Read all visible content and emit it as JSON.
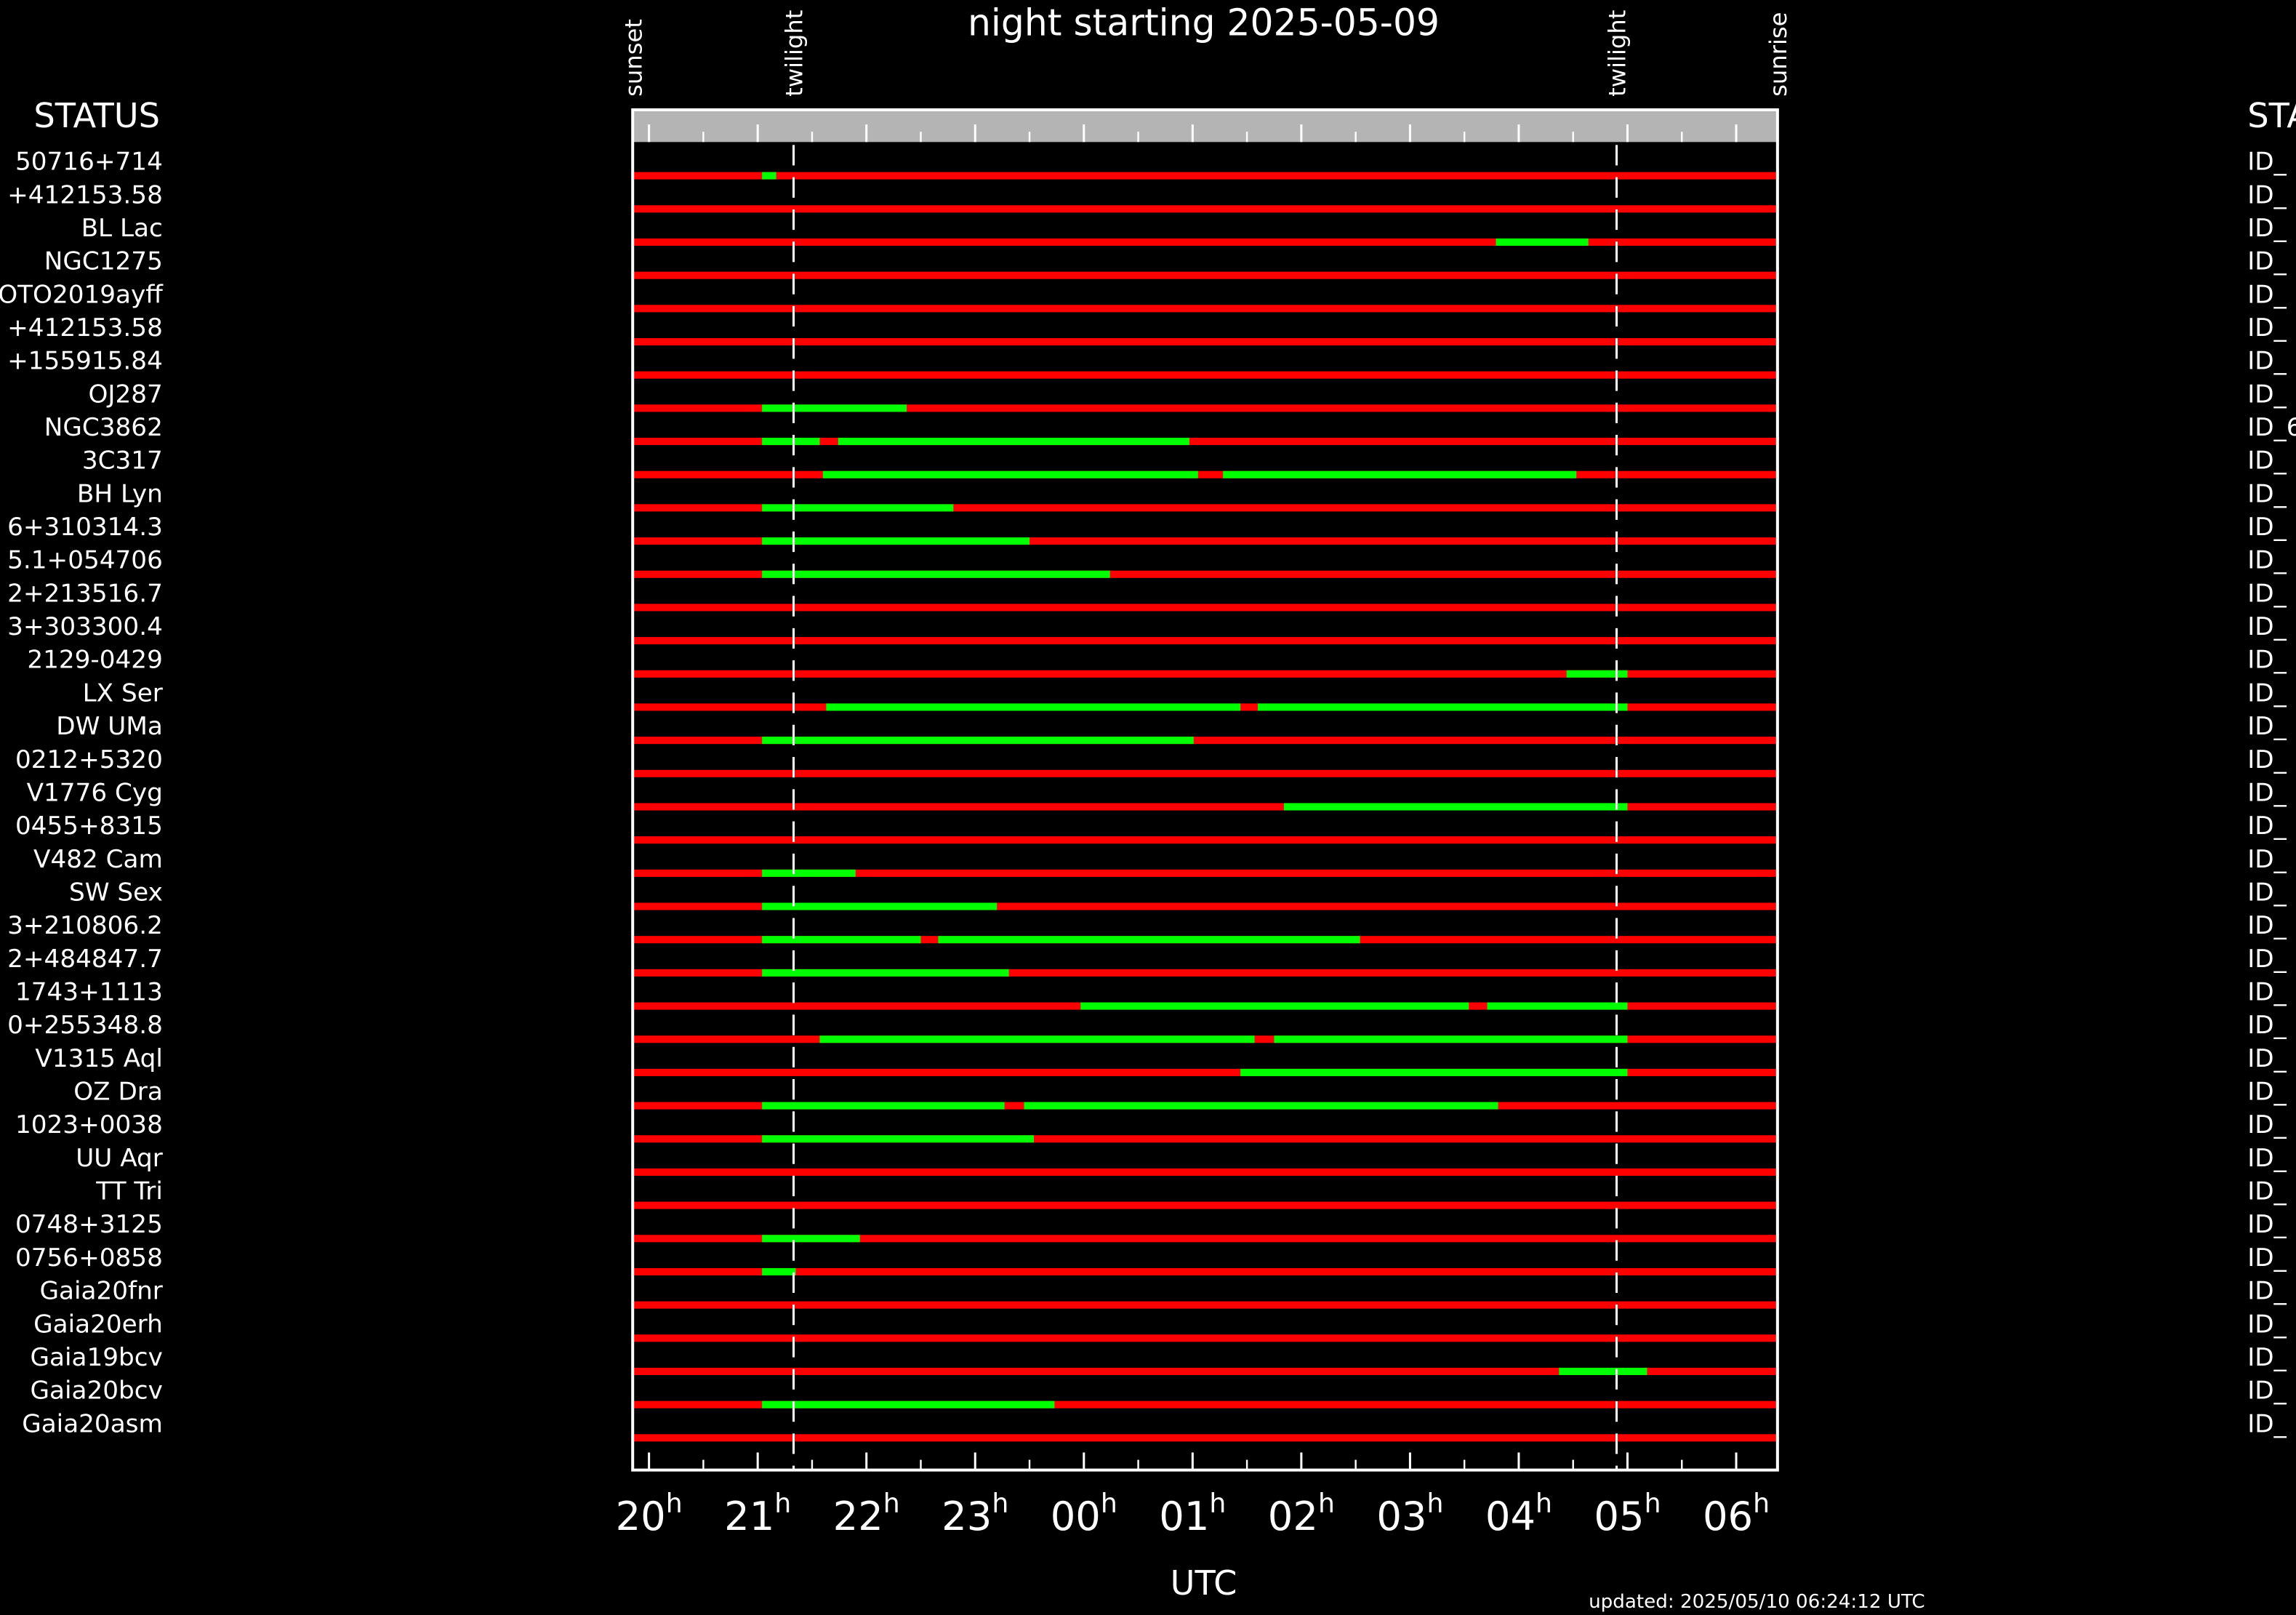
{
  "chart_data": {
    "type": "visibility",
    "title": "night starting 2025-05-09",
    "ylabel": "STATUS",
    "right_header": "STA",
    "xlabel": "UTC",
    "updated": "updated: 2025/05/10 06:24:12 UTC",
    "tick_suffix": "h",
    "xlim": [
      19.85,
      30.38
    ],
    "xticks": [
      {
        "value": 20,
        "label": "20"
      },
      {
        "value": 21,
        "label": "21"
      },
      {
        "value": 22,
        "label": "22"
      },
      {
        "value": 23,
        "label": "23"
      },
      {
        "value": 24,
        "label": "00"
      },
      {
        "value": 25,
        "label": "01"
      },
      {
        "value": 26,
        "label": "02"
      },
      {
        "value": 27,
        "label": "03"
      },
      {
        "value": 28,
        "label": "04"
      },
      {
        "value": 29,
        "label": "05"
      },
      {
        "value": 30,
        "label": "06"
      }
    ],
    "events": [
      {
        "label": "sunset",
        "value": 19.85,
        "dashed": false
      },
      {
        "label": "twilight",
        "value": 21.33,
        "dashed": true
      },
      {
        "label": "twilight",
        "value": 28.9,
        "dashed": true
      },
      {
        "label": "sunrise",
        "value": 30.38,
        "dashed": false
      }
    ],
    "colors": {
      "unobservable": "#ff0000",
      "observable": "#00ff00",
      "header": "#b4b4b4"
    },
    "rows": [
      {
        "label": "50716+714",
        "id": "ID_",
        "segments": [
          [
            21.04,
            21.17
          ]
        ]
      },
      {
        "label": "+412153.58",
        "id": "ID_",
        "segments": []
      },
      {
        "label": "BL Lac",
        "id": "ID_",
        "segments": [
          [
            27.79,
            28.64
          ]
        ]
      },
      {
        "label": "NGC1275",
        "id": "ID_",
        "segments": []
      },
      {
        "label": "OTO2019ayff",
        "id": "ID_",
        "segments": []
      },
      {
        "label": "+412153.58",
        "id": "ID_",
        "segments": []
      },
      {
        "label": "+155915.84",
        "id": "ID_",
        "segments": []
      },
      {
        "label": "OJ287",
        "id": "ID_",
        "segments": [
          [
            21.04,
            22.37
          ]
        ]
      },
      {
        "label": "NGC3862",
        "id": "ID_6",
        "segments": [
          [
            21.04,
            21.57
          ],
          [
            21.74,
            24.97
          ]
        ]
      },
      {
        "label": "3C317",
        "id": "ID_",
        "segments": [
          [
            21.6,
            25.05
          ],
          [
            25.28,
            28.53
          ]
        ]
      },
      {
        "label": "BH Lyn",
        "id": "ID_",
        "segments": [
          [
            21.04,
            22.8
          ]
        ]
      },
      {
        "label": "6+310314.3",
        "id": "ID_",
        "segments": [
          [
            21.04,
            23.5
          ]
        ]
      },
      {
        "label": "5.1+054706",
        "id": "ID_",
        "segments": [
          [
            21.04,
            24.24
          ]
        ]
      },
      {
        "label": "2+213516.7",
        "id": "ID_",
        "segments": []
      },
      {
        "label": "3+303300.4",
        "id": "ID_",
        "segments": []
      },
      {
        "label": "2129-0429",
        "id": "ID_",
        "segments": [
          [
            28.44,
            29.0
          ]
        ]
      },
      {
        "label": "LX Ser",
        "id": "ID_",
        "segments": [
          [
            21.63,
            25.44
          ],
          [
            25.6,
            29.0
          ]
        ]
      },
      {
        "label": "DW UMa",
        "id": "ID_",
        "segments": [
          [
            21.04,
            25.01
          ]
        ]
      },
      {
        "label": "0212+5320",
        "id": "ID_",
        "segments": []
      },
      {
        "label": "V1776 Cyg",
        "id": "ID_",
        "segments": [
          [
            25.84,
            29.0
          ]
        ]
      },
      {
        "label": "0455+8315",
        "id": "ID_",
        "segments": []
      },
      {
        "label": "V482 Cam",
        "id": "ID_",
        "segments": [
          [
            21.04,
            21.9
          ]
        ]
      },
      {
        "label": "SW Sex",
        "id": "ID_",
        "segments": [
          [
            21.04,
            23.2
          ]
        ]
      },
      {
        "label": "3+210806.2",
        "id": "ID_",
        "segments": [
          [
            21.04,
            22.5
          ],
          [
            22.66,
            26.54
          ]
        ]
      },
      {
        "label": "2+484847.7",
        "id": "ID_",
        "segments": [
          [
            21.04,
            23.31
          ]
        ]
      },
      {
        "label": "1743+1113",
        "id": "ID_",
        "segments": [
          [
            23.97,
            27.54
          ],
          [
            27.71,
            29.0
          ]
        ]
      },
      {
        "label": "0+255348.8",
        "id": "ID_",
        "segments": [
          [
            21.57,
            25.57
          ],
          [
            25.75,
            29.0
          ]
        ]
      },
      {
        "label": "V1315 Aql",
        "id": "ID_",
        "segments": [
          [
            25.44,
            29.0
          ]
        ]
      },
      {
        "label": "OZ Dra",
        "id": "ID_",
        "segments": [
          [
            21.04,
            23.27
          ],
          [
            23.45,
            27.81
          ]
        ]
      },
      {
        "label": "1023+0038",
        "id": "ID_",
        "segments": [
          [
            21.04,
            23.54
          ]
        ]
      },
      {
        "label": "UU Aqr",
        "id": "ID_",
        "segments": []
      },
      {
        "label": "TT Tri",
        "id": "ID_",
        "segments": []
      },
      {
        "label": "0748+3125",
        "id": "ID_",
        "segments": [
          [
            21.04,
            21.94
          ]
        ]
      },
      {
        "label": "0756+0858",
        "id": "ID_",
        "segments": [
          [
            21.04,
            21.35
          ]
        ]
      },
      {
        "label": "Gaia20fnr",
        "id": "ID_",
        "segments": []
      },
      {
        "label": "Gaia20erh",
        "id": "ID_",
        "segments": []
      },
      {
        "label": "Gaia19bcv",
        "id": "ID_",
        "segments": [
          [
            28.37,
            29.18
          ]
        ]
      },
      {
        "label": "Gaia20bcv",
        "id": "ID_",
        "segments": [
          [
            21.04,
            23.73
          ]
        ]
      },
      {
        "label": "Gaia20asm",
        "id": "ID_",
        "segments": []
      }
    ]
  }
}
